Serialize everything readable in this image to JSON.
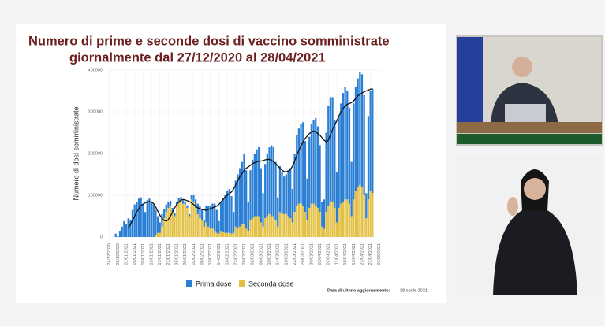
{
  "chart_data": {
    "type": "bar",
    "title": [
      "Numero di prime e seconde dosi di vaccino somministrate",
      "giornalmente dal 27/12/2020 al 28/04/2021"
    ],
    "y_label": "Numero di dosi somministrate",
    "update_note": {
      "label": "Data di ultimo aggiornamento:",
      "date": "28 aprile 2021"
    },
    "stacked": true,
    "grid": true,
    "ylim": [
      0,
      400000
    ],
    "yticks": [
      0,
      100000,
      200000,
      300000,
      400000
    ],
    "xlim": [
      -1,
      129
    ],
    "xticks": [
      {
        "value": 0,
        "label": "24/12/2020"
      },
      {
        "value": 4,
        "label": "28/12/2020"
      },
      {
        "value": 8,
        "label": "01/01/2021"
      },
      {
        "value": 12,
        "label": "05/01/2021"
      },
      {
        "value": 16,
        "label": "09/01/2021"
      },
      {
        "value": 20,
        "label": "13/01/2021"
      },
      {
        "value": 24,
        "label": "17/01/2021"
      },
      {
        "value": 28,
        "label": "21/01/2021"
      },
      {
        "value": 32,
        "label": "25/01/2021"
      },
      {
        "value": 36,
        "label": "29/01/2021"
      },
      {
        "value": 40,
        "label": "02/02/2021"
      },
      {
        "value": 44,
        "label": "06/02/2021"
      },
      {
        "value": 48,
        "label": "10/02/2021"
      },
      {
        "value": 52,
        "label": "14/02/2021"
      },
      {
        "value": 56,
        "label": "18/02/2021"
      },
      {
        "value": 60,
        "label": "22/02/2021"
      },
      {
        "value": 64,
        "label": "26/02/2021"
      },
      {
        "value": 68,
        "label": "02/03/2021"
      },
      {
        "value": 72,
        "label": "06/03/2021"
      },
      {
        "value": 76,
        "label": "10/03/2021"
      },
      {
        "value": 80,
        "label": "14/03/2021"
      },
      {
        "value": 84,
        "label": "18/03/2021"
      },
      {
        "value": 88,
        "label": "22/03/2021"
      },
      {
        "value": 92,
        "label": "26/03/2021"
      },
      {
        "value": 96,
        "label": "30/03/2021"
      },
      {
        "value": 100,
        "label": "03/04/2021"
      },
      {
        "value": 104,
        "label": "07/04/2021"
      },
      {
        "value": 108,
        "label": "11/04/2021"
      },
      {
        "value": 112,
        "label": "15/04/2021"
      },
      {
        "value": 116,
        "label": "19/04/2021"
      },
      {
        "value": 120,
        "label": "23/04/2021"
      },
      {
        "value": 124,
        "label": "27/04/2021"
      },
      {
        "value": 128,
        "label": "01/05/2021"
      }
    ],
    "x": [
      3,
      4,
      5,
      6,
      7,
      8,
      9,
      10,
      11,
      12,
      13,
      14,
      15,
      16,
      17,
      18,
      19,
      20,
      21,
      22,
      23,
      24,
      25,
      26,
      27,
      28,
      29,
      30,
      31,
      32,
      33,
      34,
      35,
      36,
      37,
      38,
      39,
      40,
      41,
      42,
      43,
      44,
      45,
      46,
      47,
      48,
      49,
      50,
      51,
      52,
      53,
      54,
      55,
      56,
      57,
      58,
      59,
      60,
      61,
      62,
      63,
      64,
      65,
      66,
      67,
      68,
      69,
      70,
      71,
      72,
      73,
      74,
      75,
      76,
      77,
      78,
      79,
      80,
      81,
      82,
      83,
      84,
      85,
      86,
      87,
      88,
      89,
      90,
      91,
      92,
      93,
      94,
      95,
      96,
      97,
      98,
      99,
      100,
      101,
      102,
      103,
      104,
      105,
      106,
      107,
      108,
      109,
      110,
      111,
      112,
      113,
      114,
      115,
      116,
      117,
      118,
      119,
      120,
      121,
      122,
      123,
      124,
      125
    ],
    "series": [
      {
        "name": "Prima dose",
        "color": "#2a7fd4",
        "values": [
          8000,
          2000,
          15000,
          25000,
          38000,
          30000,
          45000,
          40000,
          65000,
          78000,
          85000,
          92000,
          95000,
          80000,
          60000,
          88000,
          92000,
          85000,
          78000,
          60000,
          40000,
          25000,
          30000,
          22000,
          18000,
          15000,
          12000,
          10000,
          8000,
          10000,
          9000,
          8000,
          8000,
          7000,
          6000,
          5000,
          10000,
          15000,
          20000,
          25000,
          30000,
          25000,
          15000,
          40000,
          50000,
          55000,
          60000,
          65000,
          55000,
          30000,
          70000,
          80000,
          90000,
          100000,
          105000,
          90000,
          50000,
          110000,
          130000,
          140000,
          150000,
          170000,
          140000,
          70000,
          120000,
          140000,
          150000,
          160000,
          165000,
          130000,
          80000,
          130000,
          150000,
          160000,
          170000,
          165000,
          140000,
          70000,
          110000,
          100000,
          90000,
          95000,
          110000,
          120000,
          80000,
          140000,
          170000,
          180000,
          190000,
          200000,
          170000,
          100000,
          170000,
          190000,
          200000,
          210000,
          195000,
          160000,
          60000,
          70000,
          190000,
          240000,
          250000,
          250000,
          210000,
          120000,
          220000,
          240000,
          260000,
          270000,
          260000,
          230000,
          130000,
          230000,
          250000,
          260000,
          270000,
          270000,
          240000,
          60000,
          200000,
          240000,
          250000
        ]
      },
      {
        "name": "Seconda dose",
        "color": "#e3c147",
        "values": [
          0,
          0,
          0,
          0,
          0,
          0,
          0,
          0,
          0,
          0,
          0,
          0,
          0,
          0,
          0,
          0,
          0,
          0,
          0,
          5000,
          10000,
          10000,
          25000,
          45000,
          60000,
          70000,
          75000,
          60000,
          50000,
          75000,
          85000,
          88000,
          80000,
          78000,
          70000,
          50000,
          90000,
          85000,
          70000,
          55000,
          45000,
          40000,
          25000,
          35000,
          25000,
          20000,
          20000,
          15000,
          10000,
          8000,
          15000,
          12000,
          10000,
          10000,
          10000,
          8000,
          10000,
          25000,
          20000,
          25000,
          30000,
          30000,
          20000,
          15000,
          40000,
          45000,
          50000,
          50000,
          50000,
          35000,
          25000,
          45000,
          50000,
          55000,
          50000,
          50000,
          40000,
          25000,
          60000,
          55000,
          55000,
          55000,
          50000,
          45000,
          35000,
          60000,
          75000,
          80000,
          80000,
          75000,
          60000,
          40000,
          70000,
          80000,
          80000,
          75000,
          70000,
          60000,
          25000,
          20000,
          60000,
          75000,
          85000,
          85000,
          70000,
          35000,
          70000,
          80000,
          85000,
          90000,
          90000,
          80000,
          50000,
          90000,
          110000,
          120000,
          125000,
          120000,
          100000,
          45000,
          90000,
          110000,
          105000
        ]
      }
    ],
    "line": {
      "color": "#111111",
      "values": [
        null,
        null,
        null,
        null,
        null,
        null,
        23000,
        30000,
        40000,
        50000,
        60000,
        68000,
        75000,
        79000,
        82000,
        84000,
        85000,
        84000,
        80000,
        72000,
        62000,
        52000,
        45000,
        40000,
        38000,
        42000,
        50000,
        60000,
        70000,
        78000,
        84000,
        88000,
        90000,
        89000,
        87000,
        85000,
        82000,
        78000,
        74000,
        70000,
        68000,
        66000,
        65000,
        64000,
        66000,
        68000,
        70000,
        72000,
        74000,
        78000,
        84000,
        90000,
        96000,
        100000,
        104000,
        108000,
        115000,
        125000,
        135000,
        145000,
        152000,
        160000,
        165000,
        168000,
        172000,
        176000,
        178000,
        180000,
        182000,
        182000,
        183000,
        185000,
        186000,
        186000,
        184000,
        180000,
        176000,
        170000,
        165000,
        160000,
        157000,
        156000,
        158000,
        162000,
        170000,
        182000,
        195000,
        208000,
        218000,
        228000,
        236000,
        242000,
        248000,
        252000,
        254000,
        252000,
        248000,
        244000,
        238000,
        232000,
        228000,
        232000,
        245000,
        258000,
        268000,
        278000,
        290000,
        300000,
        308000,
        314000,
        318000,
        320000,
        322000,
        326000,
        332000,
        338000,
        342000,
        345000,
        348000,
        350000,
        352000,
        354000,
        356000
      ]
    }
  }
}
